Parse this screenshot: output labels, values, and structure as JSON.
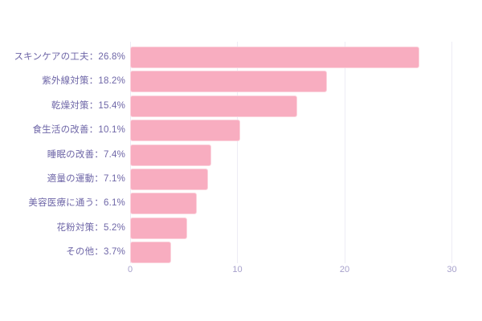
{
  "chart_data": {
    "type": "bar",
    "orientation": "horizontal",
    "title": "",
    "xlabel": "",
    "ylabel": "",
    "categories": [
      "スキンケアの工夫",
      "紫外線対策",
      "乾燥対策",
      "食生活の改善",
      "睡眠の改善",
      "適量の運動",
      "美容医療に通う",
      "花粉対策",
      "その他"
    ],
    "values": [
      26.8,
      18.2,
      15.4,
      10.1,
      7.4,
      7.1,
      6.1,
      5.2,
      3.7
    ],
    "display_labels": [
      "スキンケアの工夫：26.8%",
      "紫外線対策：18.2%",
      "乾燥対策：15.4%",
      "食生活の改善：10.1%",
      "睡眠の改善：7.4%",
      "適量の運動：7.1%",
      "美容医療に通う：6.1%",
      "花粉対策：5.2%",
      "その他：3.7%"
    ],
    "x_ticks": [
      0,
      10,
      20,
      30
    ],
    "xlim": [
      0,
      31
    ],
    "grid": true,
    "legend_position": "none",
    "colors": {
      "bar_fill": "#f8adc0",
      "bar_border": "#fbd2dc",
      "category_label": "#6e66a7",
      "tick_label": "#a6a0cb",
      "gridline": "#edecf5",
      "background": "#ffffff"
    }
  }
}
